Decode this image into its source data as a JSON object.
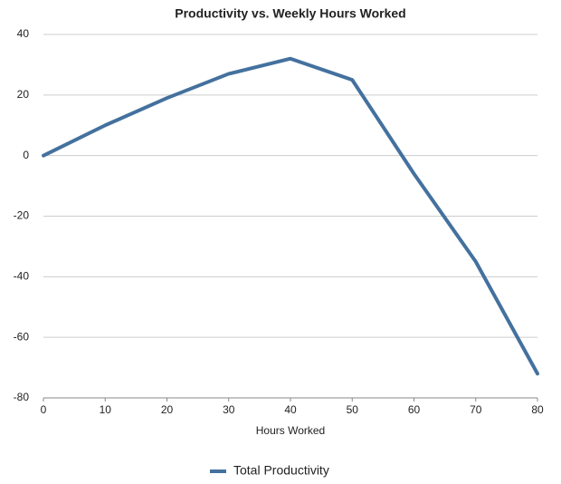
{
  "chart_data": {
    "type": "line",
    "title": "Productivity vs. Weekly Hours Worked",
    "x_label": "Hours Worked",
    "x": [
      0,
      10,
      20,
      30,
      40,
      50,
      60,
      70,
      80
    ],
    "series": [
      {
        "name": "Total Productivity",
        "color": "#44719e",
        "values": [
          0,
          10,
          19,
          27,
          32,
          25,
          -6,
          -35,
          -72
        ]
      }
    ],
    "xlim": [
      0,
      80
    ],
    "xticks": [
      0,
      10,
      20,
      30,
      40,
      50,
      60,
      70,
      80
    ],
    "ylim": [
      -80,
      40
    ],
    "yticks": [
      -80,
      -60,
      -40,
      -20,
      0,
      20,
      40
    ],
    "grid": true,
    "legend": "bottom"
  }
}
